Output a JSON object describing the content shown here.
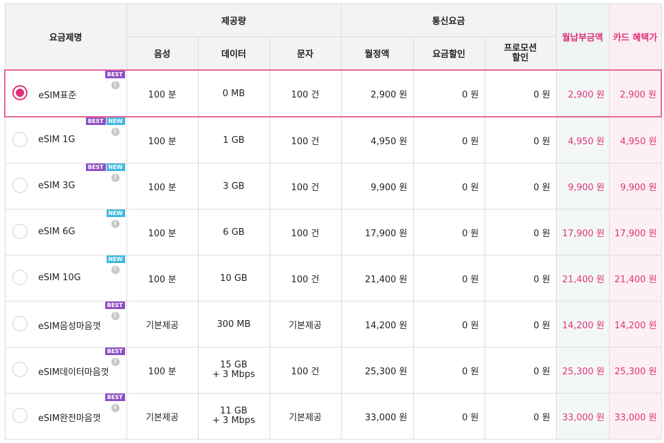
{
  "header": {
    "plan_name": "요금제명",
    "provision": "제공량",
    "telecom_fee": "통신요금",
    "monthly_pay": "월납부금액",
    "card_price": "카드 혜택가",
    "voice": "음성",
    "data": "데이터",
    "sms": "문자",
    "monthly_fee": "월정액",
    "fee_discount": "요금할인",
    "promo_discount_line1": "프로모션",
    "promo_discount_line2": "할인"
  },
  "colors": {
    "accent": "#e0327a",
    "best_badge": "#8e4fc4",
    "new_badge": "#3fb8e0"
  },
  "plans": [
    {
      "name": "eSIM표준",
      "badges": [
        "BEST"
      ],
      "voice": "100 분",
      "data": "0 MB",
      "data2": "",
      "sms": "100 건",
      "monthly": "2,900 원",
      "discount": "0 원",
      "promo": "0 원",
      "pay": "2,900 원",
      "card": "2,900 원",
      "selected": true
    },
    {
      "name": "eSIM 1G",
      "badges": [
        "BEST",
        "NEW"
      ],
      "voice": "100 분",
      "data": "1 GB",
      "data2": "",
      "sms": "100 건",
      "monthly": "4,950 원",
      "discount": "0 원",
      "promo": "0 원",
      "pay": "4,950 원",
      "card": "4,950 원",
      "selected": false
    },
    {
      "name": "eSIM 3G",
      "badges": [
        "BEST",
        "NEW"
      ],
      "voice": "100 분",
      "data": "3 GB",
      "data2": "",
      "sms": "100 건",
      "monthly": "9,900 원",
      "discount": "0 원",
      "promo": "0 원",
      "pay": "9,900 원",
      "card": "9,900 원",
      "selected": false
    },
    {
      "name": "eSIM 6G",
      "badges": [
        "NEW"
      ],
      "voice": "100 분",
      "data": "6 GB",
      "data2": "",
      "sms": "100 건",
      "monthly": "17,900 원",
      "discount": "0 원",
      "promo": "0 원",
      "pay": "17,900 원",
      "card": "17,900 원",
      "selected": false
    },
    {
      "name": "eSIM 10G",
      "badges": [
        "NEW"
      ],
      "voice": "100 분",
      "data": "10 GB",
      "data2": "",
      "sms": "100 건",
      "monthly": "21,400 원",
      "discount": "0 원",
      "promo": "0 원",
      "pay": "21,400 원",
      "card": "21,400 원",
      "selected": false
    },
    {
      "name": "eSIM음성마음껏",
      "badges": [
        "BEST"
      ],
      "voice": "기본제공",
      "data": "300 MB",
      "data2": "",
      "sms": "기본제공",
      "monthly": "14,200 원",
      "discount": "0 원",
      "promo": "0 원",
      "pay": "14,200 원",
      "card": "14,200 원",
      "selected": false
    },
    {
      "name": "eSIM데이터마음껏",
      "badges": [
        "BEST"
      ],
      "voice": "100 분",
      "data": "15 GB",
      "data2": "+ 3 Mbps",
      "sms": "100 건",
      "monthly": "25,300 원",
      "discount": "0 원",
      "promo": "0 원",
      "pay": "25,300 원",
      "card": "25,300 원",
      "selected": false
    },
    {
      "name": "eSIM완전마음껏",
      "badges": [
        "BEST"
      ],
      "voice": "기본제공",
      "data": "11 GB",
      "data2": "+ 3 Mbps",
      "sms": "기본제공",
      "monthly": "33,000 원",
      "discount": "0 원",
      "promo": "0 원",
      "pay": "33,000 원",
      "card": "33,000 원",
      "selected": false
    }
  ]
}
